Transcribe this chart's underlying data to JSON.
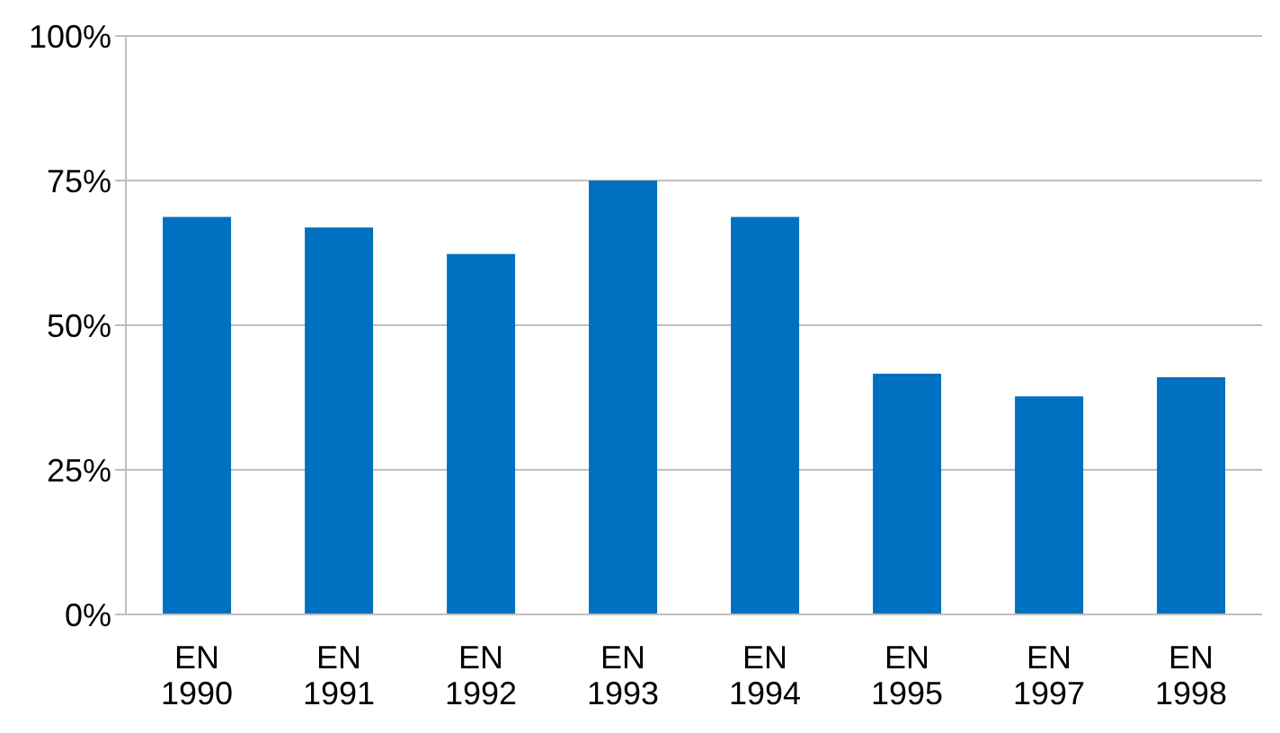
{
  "chart_data": {
    "type": "bar",
    "categories": [
      "EN 1990",
      "EN 1991",
      "EN 1992",
      "EN 1993",
      "EN 1994",
      "EN 1995",
      "EN 1997",
      "EN 1998"
    ],
    "values": [
      68.7,
      66.9,
      62.3,
      75,
      68.7,
      41.6,
      37.7,
      41.0
    ],
    "color": "#0070c0",
    "ylim": [
      0,
      100
    ],
    "yticks": [
      {
        "value": 0,
        "label": "0%"
      },
      {
        "value": 25,
        "label": "25%"
      },
      {
        "value": 50,
        "label": "50%"
      },
      {
        "value": 75,
        "label": "75%"
      },
      {
        "value": 100,
        "label": "100%"
      }
    ],
    "grid": "y"
  }
}
